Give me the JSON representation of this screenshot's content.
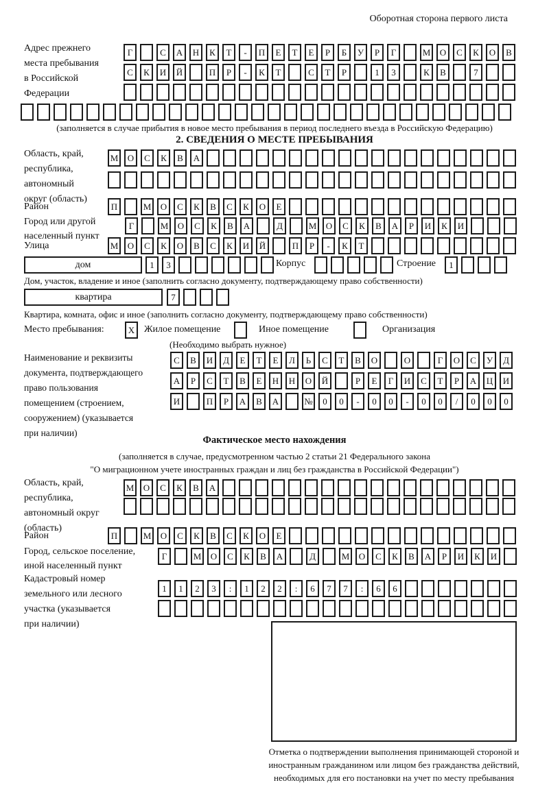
{
  "header": {
    "note": "Оборотная сторона первого листа"
  },
  "section1": {
    "label": "Адрес прежнего\nместа пребывания\nв Российской\nФедерации",
    "rows": [
      "Г САНКТ-ПЕТЕРБУРГ МОСКОВ",
      "СКИЙ ПР-КТ СТР 13 КВ 7  ",
      "                        ",
      "                              "
    ],
    "caption": "(заполняется в случае прибытия в новое место пребывания в период последнего въезда в Российскую Федерацию)"
  },
  "section2": {
    "title": "2. СВЕДЕНИЯ О МЕСТЕ ПРЕБЫВАНИЯ",
    "region_label": "Область, край,\nреспублика,\nавтономный\nокруг (область)",
    "region_rows": [
      "МОСКВА                   ",
      "                         "
    ],
    "district_label": "Район",
    "district_row": "П МОСКВСКОЕ              ",
    "city_label": "Город или другой\nнаселенный пункт",
    "city_row": "Г МОСКВА Д МОСКВАРИКИ   ",
    "street_label": "Улица",
    "street_row": "МОСКОВСКИЙ ПР-КТ         ",
    "house_label": "дом",
    "house_row": "13      ",
    "korpus_label": "Корпус",
    "korpus_row": "     ",
    "stroenie_label": "Строение",
    "stroenie_row": "1   ",
    "house_caption": "Дом, участок, владение и иное (заполнить согласно документу, подтверждающему право собственности)",
    "flat_label": "квартира",
    "flat_row": "7   ",
    "flat_caption": "Квартира, комната, офис и иное (заполнить согласно документу, подтверждающему право собственности)",
    "stay_label": "Место пребывания:",
    "stay_checkbox1": "X",
    "stay_opt1": "Жилое помещение",
    "stay_checkbox2": " ",
    "stay_opt2": "Иное помещение",
    "stay_checkbox3": " ",
    "stay_opt3": "Организация",
    "stay_caption": "(Необходимо выбрать нужное)",
    "doc_label": "Наименование и реквизиты\nдокумента, подтверждающего\nправо пользования\nпомещением (строением,\nсооружением) (указывается\nпри наличии)",
    "doc_rows": [
      "СВИДЕТЕЛЬСТВО О ГОСУД",
      "АРСТВЕННОЙ РЕГИСТРАЦИ",
      "И ПРАВА №00-00-00/000"
    ]
  },
  "fact": {
    "title": "Фактическое место нахождения",
    "caption_line1": "(заполняется в случае, предусмотренном частью 2 статьи 21 Федерального закона",
    "caption_line2": "\"О миграционном учете иностранных граждан и лиц без гражданства в Российской Федерации\")",
    "region_label": "Область, край,\nреспублика,\nавтономный округ\n(область)",
    "region_rows": [
      "МОСКВА                  ",
      "                        "
    ],
    "district_label": "Район",
    "district_row": "П МОСКВСКОЕ              ",
    "city_label": "Город, сельское поселение,\nиной населенный пункт",
    "city_row": "Г МОСКВА Д МОСКВАРИКИ ",
    "cadastre_label": "Кадастровый номер\nземельного или лесного\nучастка (указывается\nпри наличии)",
    "cadastre_rows": [
      "1123:122:677:66       ",
      "                      "
    ],
    "stamp_caption": "Отметка о подтверждении выполнения принимающей стороной и иностранным гражданином или лицом без гражданства действий, необходимых для его постановки на учет по месту пребывания"
  }
}
